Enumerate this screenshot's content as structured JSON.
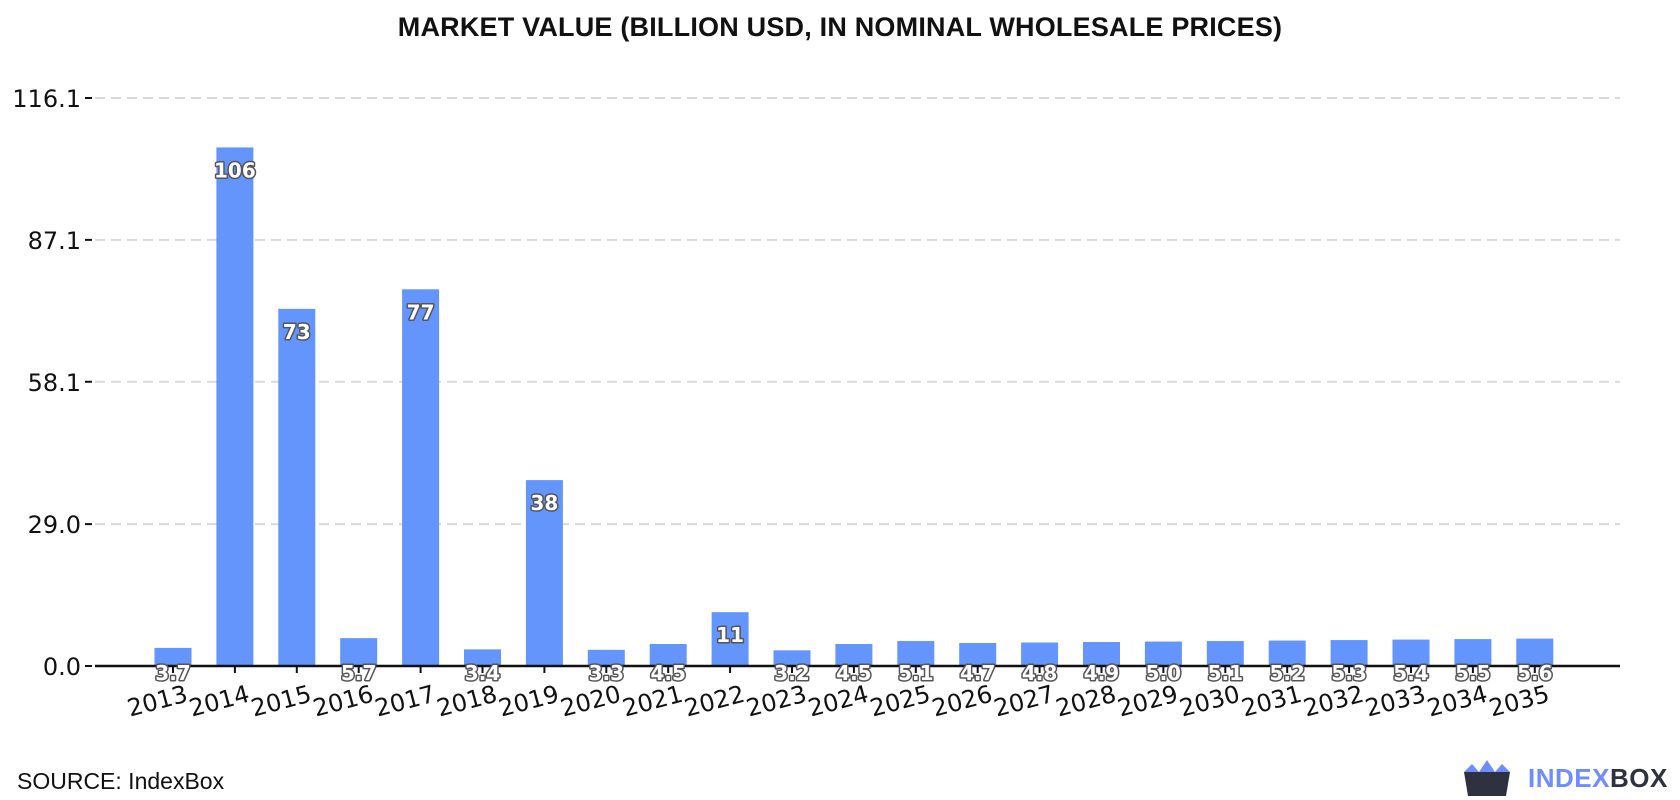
{
  "title": "MARKET VALUE (BILLION USD, IN NOMINAL WHOLESALE PRICES)",
  "source": "SOURCE: IndexBox",
  "brand": {
    "part_a": "INDEX",
    "part_b": "BOX",
    "icon": "crown-box-logo"
  },
  "colors": {
    "bar": "#6495fc",
    "grid": "#d9d9d9",
    "axis": "#111111",
    "brand_accent": "#6f8dff",
    "brand_dark": "#2e3240"
  },
  "chart_data": {
    "type": "bar",
    "title": "MARKET VALUE (BILLION USD, IN NOMINAL WHOLESALE PRICES)",
    "xlabel": "",
    "ylabel": "",
    "categories": [
      "2013",
      "2014",
      "2015",
      "2016",
      "2017",
      "2018",
      "2019",
      "2020",
      "2021",
      "2022",
      "2023",
      "2024",
      "2025",
      "2026",
      "2027",
      "2028",
      "2029",
      "2030",
      "2031",
      "2032",
      "2033",
      "2034",
      "2035"
    ],
    "values": [
      3.7,
      106,
      73,
      5.7,
      77,
      3.4,
      38,
      3.3,
      4.5,
      11,
      3.2,
      4.5,
      5.1,
      4.7,
      4.8,
      4.9,
      5.0,
      5.1,
      5.2,
      5.3,
      5.4,
      5.5,
      5.6
    ],
    "value_labels": [
      "3.7",
      "106",
      "73",
      "5.7",
      "77",
      "3.4",
      "38",
      "3.3",
      "4.5",
      "11",
      "3.2",
      "4.5",
      "5.1",
      "4.7",
      "4.8",
      "4.9",
      "5.0",
      "5.1",
      "5.2",
      "5.3",
      "5.4",
      "5.5",
      "5.6"
    ],
    "yticks": [
      0.0,
      29.0,
      58.1,
      87.1,
      116.1
    ],
    "ytick_labels": [
      "0.0",
      "29.0",
      "58.1",
      "87.1",
      "116.1"
    ],
    "ylim": [
      0,
      116.1
    ],
    "grid": true,
    "grid_style": "dashed-horizontal",
    "legend": "none"
  }
}
